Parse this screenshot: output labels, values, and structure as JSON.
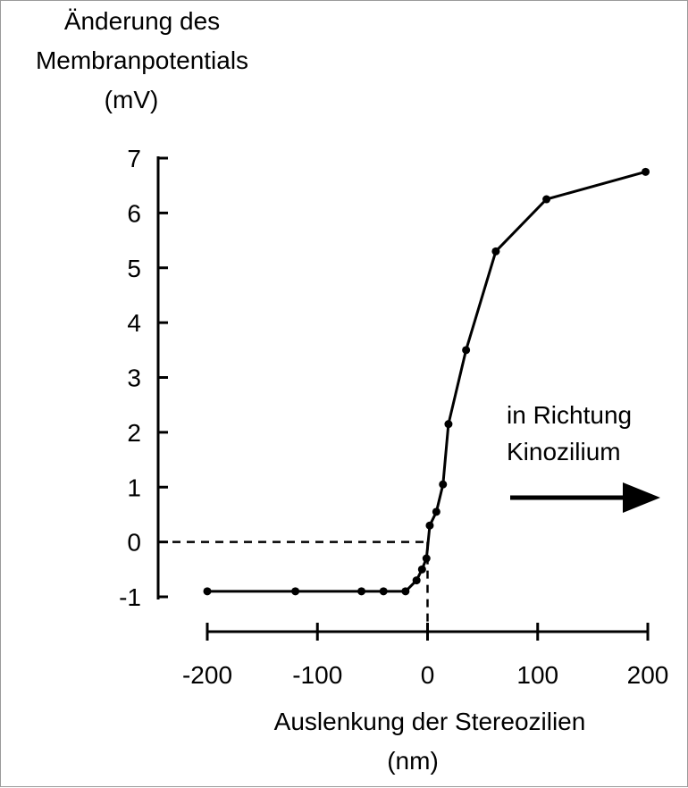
{
  "chart_data": {
    "type": "line",
    "title": "",
    "ylabel": [
      "Änderung des",
      "Membranpotentials",
      "(mV)"
    ],
    "xlabel": [
      "Auslenkung der Stereozilien",
      "(nm)"
    ],
    "ylim": [
      -1,
      7
    ],
    "xlim": [
      -200,
      200
    ],
    "yticks": [
      -1,
      0,
      1,
      2,
      3,
      4,
      5,
      6,
      7
    ],
    "xticks": [
      -200,
      -100,
      0,
      100,
      200
    ],
    "ytick_labels": [
      "-1",
      "0",
      "1",
      "2",
      "3",
      "4",
      "5",
      "6",
      "7"
    ],
    "xtick_labels": [
      "-200",
      "-100",
      "0",
      "100",
      "200"
    ],
    "grid": false,
    "series": [
      {
        "x": [
          -200,
          -120,
          -60,
          -40,
          -20,
          -10,
          -5,
          -1,
          2,
          8,
          14,
          19,
          35,
          62,
          108,
          198
        ],
        "y": [
          -0.9,
          -0.9,
          -0.9,
          -0.9,
          -0.9,
          -0.7,
          -0.5,
          -0.3,
          0.3,
          0.55,
          1.05,
          2.15,
          3.5,
          5.3,
          6.25,
          6.75
        ],
        "color": "#000000"
      }
    ],
    "annotation": {
      "lines": [
        "in Richtung",
        "Kinozilium"
      ],
      "arrow": "right"
    }
  }
}
